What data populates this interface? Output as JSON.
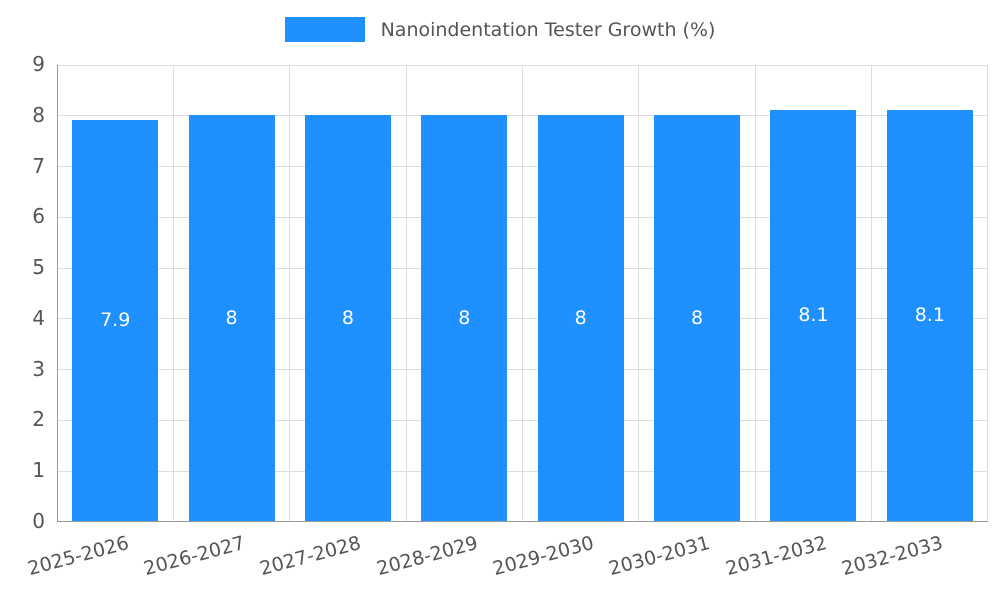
{
  "colors": {
    "bar": "#1E90FF",
    "grid": "#dddddd",
    "axis": "#999999",
    "text": "#555555",
    "bar_label": "#ffffff"
  },
  "chart_data": {
    "type": "bar",
    "title": "Nanoindentation Tester Growth (%)",
    "categories": [
      "2025-2026",
      "2026-2027",
      "2027-2028",
      "2028-2029",
      "2029-2030",
      "2030-2031",
      "2031-2032",
      "2032-2033"
    ],
    "values": [
      7.9,
      8,
      8,
      8,
      8,
      8,
      8.1,
      8.1
    ],
    "data_labels": [
      "7.9",
      "8",
      "8",
      "8",
      "8",
      "8",
      "8.1",
      "8.1"
    ],
    "xlabel": "",
    "ylabel": "",
    "ylim": [
      0,
      9
    ],
    "yticks": [
      0,
      1,
      2,
      3,
      4,
      5,
      6,
      7,
      8,
      9
    ],
    "grid": true,
    "legend_position": "top"
  }
}
